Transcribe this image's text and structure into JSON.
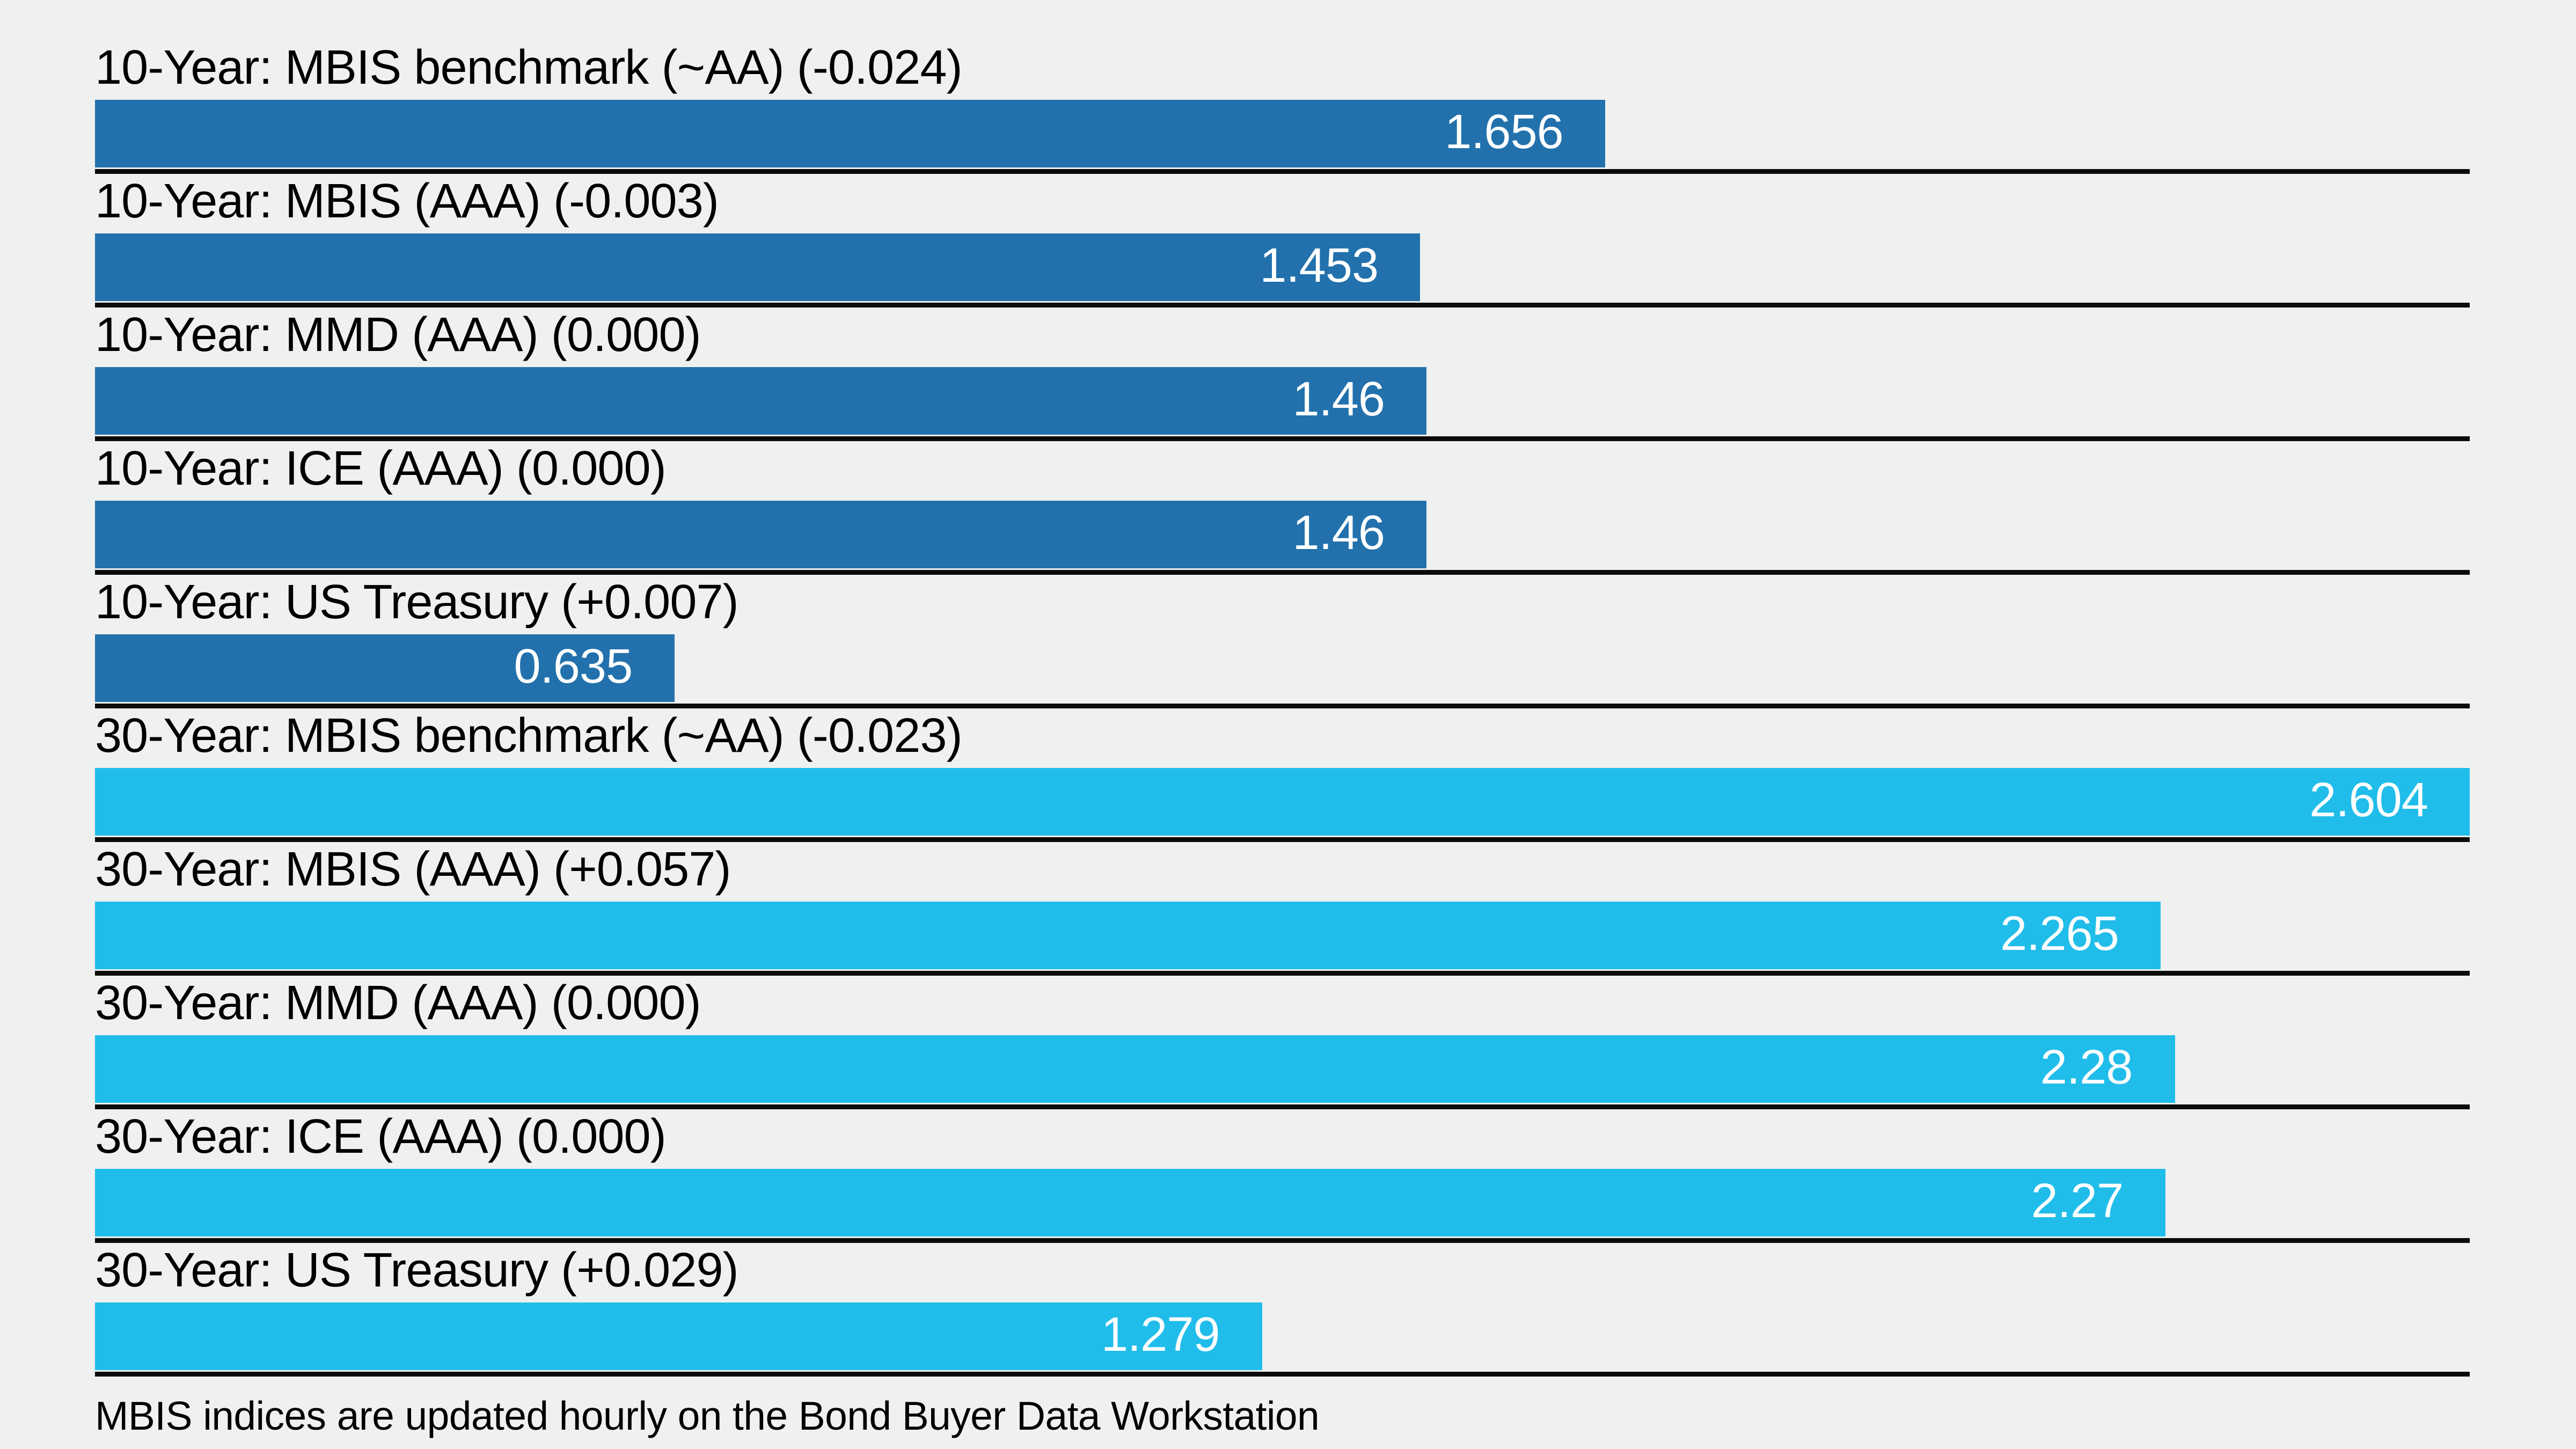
{
  "page": {
    "background_color": "#eff1f0",
    "separator_color": "#0b0b0b",
    "footer_note": "MBIS indices are updated hourly on the Bond Buyer Data Workstation"
  },
  "chart_data": {
    "type": "bar",
    "orientation": "horizontal",
    "title": "",
    "xlabel": "",
    "ylabel": "",
    "xlim": [
      0,
      2.604
    ],
    "axis_visible": false,
    "legend": "none",
    "row_separators": true,
    "value_label_position": "inside-right",
    "value_label_color": "#ffffff",
    "groups": [
      {
        "name": "10-Year",
        "bar_color": "#2271ac"
      },
      {
        "name": "30-Year",
        "bar_color": "#21bdea"
      }
    ],
    "bars": [
      {
        "label": "10-Year: MBIS benchmark (~AA) (-0.024)",
        "value": 1.656,
        "value_label": "1.656",
        "group": "10-Year"
      },
      {
        "label": "10-Year: MBIS (AAA) (-0.003)",
        "value": 1.453,
        "value_label": "1.453",
        "group": "10-Year"
      },
      {
        "label": "10-Year: MMD (AAA) (0.000)",
        "value": 1.46,
        "value_label": "1.46",
        "group": "10-Year"
      },
      {
        "label": "10-Year: ICE (AAA) (0.000)",
        "value": 1.46,
        "value_label": "1.46",
        "group": "10-Year"
      },
      {
        "label": "10-Year: US Treasury (+0.007)",
        "value": 0.635,
        "value_label": "0.635",
        "group": "10-Year"
      },
      {
        "label": "30-Year: MBIS benchmark (~AA) (-0.023)",
        "value": 2.604,
        "value_label": "2.604",
        "group": "30-Year"
      },
      {
        "label": "30-Year: MBIS (AAA) (+0.057)",
        "value": 2.265,
        "value_label": "2.265",
        "group": "30-Year"
      },
      {
        "label": "30-Year: MMD (AAA) (0.000)",
        "value": 2.28,
        "value_label": "2.28",
        "group": "30-Year"
      },
      {
        "label": "30-Year: ICE (AAA) (0.000)",
        "value": 2.27,
        "value_label": "2.27",
        "group": "30-Year"
      },
      {
        "label": "30-Year: US Treasury (+0.029)",
        "value": 1.279,
        "value_label": "1.279",
        "group": "30-Year"
      }
    ]
  }
}
